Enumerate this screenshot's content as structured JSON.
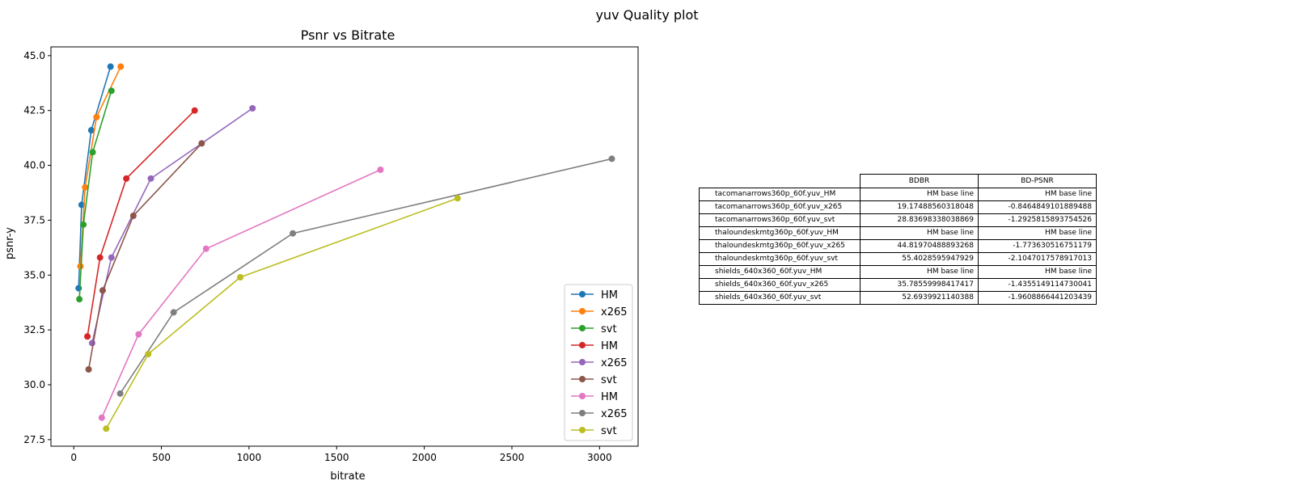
{
  "suptitle": "yuv Quality plot",
  "chart_data": {
    "type": "line",
    "title": "Psnr vs Bitrate",
    "xlabel": "bitrate",
    "ylabel": "psnr-y",
    "xlim": [
      -130,
      3220
    ],
    "ylim": [
      27.2,
      45.4
    ],
    "xticks": [
      0,
      500,
      1000,
      1500,
      2000,
      2500,
      3000
    ],
    "yticks": [
      27.5,
      30.0,
      32.5,
      35.0,
      37.5,
      40.0,
      42.5,
      45.0
    ],
    "xtick_labels": [
      "0",
      "500",
      "1000",
      "1500",
      "2000",
      "2500",
      "3000"
    ],
    "ytick_labels": [
      "27.5",
      "30.0",
      "32.5",
      "35.0",
      "37.5",
      "40.0",
      "42.5",
      "45.0"
    ],
    "legend_position": "lower right",
    "series": [
      {
        "name": "HM",
        "color": "#1f77b4",
        "x": [
          28,
          45,
          100,
          210
        ],
        "y": [
          34.4,
          38.2,
          41.6,
          44.5
        ]
      },
      {
        "name": "x265",
        "color": "#ff7f0e",
        "x": [
          38,
          65,
          130,
          268
        ],
        "y": [
          35.4,
          39.0,
          42.2,
          44.5
        ]
      },
      {
        "name": "svt",
        "color": "#2ca02c",
        "x": [
          32,
          55,
          108,
          215
        ],
        "y": [
          33.9,
          37.3,
          40.6,
          43.4
        ]
      },
      {
        "name": "HM",
        "color": "#d62728",
        "x": [
          78,
          150,
          300,
          690
        ],
        "y": [
          32.2,
          35.8,
          39.4,
          42.5
        ]
      },
      {
        "name": "x265",
        "color": "#9467bd",
        "x": [
          105,
          215,
          440,
          1020
        ],
        "y": [
          31.9,
          35.8,
          39.4,
          42.6
        ]
      },
      {
        "name": "svt",
        "color": "#8c564b",
        "x": [
          85,
          165,
          340,
          730
        ],
        "y": [
          30.7,
          34.3,
          37.7,
          41.0
        ]
      },
      {
        "name": "HM",
        "color": "#e377c2",
        "x": [
          160,
          370,
          755,
          1750
        ],
        "y": [
          28.5,
          32.3,
          36.2,
          39.8
        ]
      },
      {
        "name": "x265",
        "color": "#7f7f7f",
        "x": [
          265,
          570,
          1250,
          3070
        ],
        "y": [
          29.6,
          33.3,
          36.9,
          40.3
        ]
      },
      {
        "name": "svt",
        "color": "#bcbd22",
        "x": [
          185,
          425,
          950,
          2190
        ],
        "y": [
          28.0,
          31.4,
          34.9,
          38.5
        ]
      }
    ]
  },
  "table": {
    "headers": [
      "BDBR",
      "BD-PSNR"
    ],
    "rows": [
      {
        "name": "tacomanarrows360p_60f.yuv_HM",
        "bdbr": "HM base line",
        "bdpsnr": "HM base line"
      },
      {
        "name": "tacomanarrows360p_60f.yuv_x265",
        "bdbr": "19.17488560318048",
        "bdpsnr": "-0.8464849101889488"
      },
      {
        "name": "tacomanarrows360p_60f.yuv_svt",
        "bdbr": "28.83698338038869",
        "bdpsnr": "-1.2925815893754526"
      },
      {
        "name": "thaloundeskmtg360p_60f.yuv_HM",
        "bdbr": "HM base line",
        "bdpsnr": "HM base line"
      },
      {
        "name": "thaloundeskmtg360p_60f.yuv_x265",
        "bdbr": "44.81970488893268",
        "bdpsnr": "-1.773630516751179"
      },
      {
        "name": "thaloundeskmtg360p_60f.yuv_svt",
        "bdbr": "55.4028595947929",
        "bdpsnr": "-2.1047017578917013"
      },
      {
        "name": "shields_640x360_60f.yuv_HM",
        "bdbr": "HM base line",
        "bdpsnr": "HM base line"
      },
      {
        "name": "shields_640x360_60f.yuv_x265",
        "bdbr": "35.78559998417417",
        "bdpsnr": "-1.4355149114730041"
      },
      {
        "name": "shields_640x360_60f.yuv_svt",
        "bdbr": "52.6939921140388",
        "bdpsnr": "-1.9608866441203439"
      }
    ]
  }
}
